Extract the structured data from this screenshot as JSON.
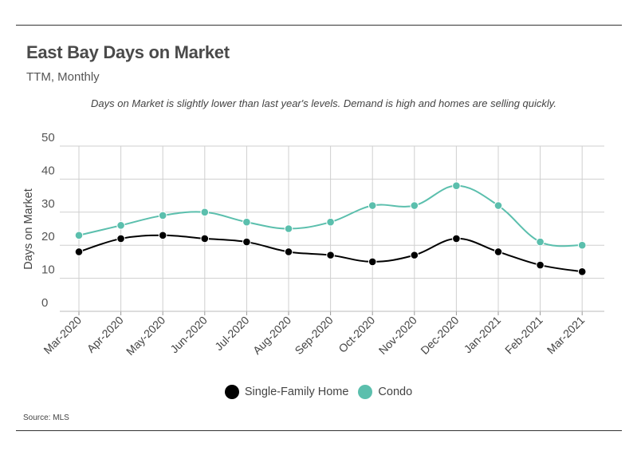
{
  "header": {
    "title": "East Bay Days on Market",
    "subtitle": "TTM, Monthly",
    "note": "Days on Market is slightly lower than last year's levels. Demand is high and homes are selling quickly."
  },
  "footer": {
    "source": "Source: MLS"
  },
  "colors": {
    "single_family": "#000000",
    "condo": "#5bbfad",
    "grid": "#cfcfcf"
  },
  "chart_data": {
    "type": "line",
    "categories": [
      "Mar-2020",
      "Apr-2020",
      "May-2020",
      "Jun-2020",
      "Jul-2020",
      "Aug-2020",
      "Sep-2020",
      "Oct-2020",
      "Nov-2020",
      "Dec-2020",
      "Jan-2021",
      "Feb-2021",
      "Mar-2021"
    ],
    "series": [
      {
        "name": "Single-Family Home",
        "values": [
          18,
          22,
          23,
          22,
          21,
          18,
          17,
          15,
          17,
          22,
          18,
          14,
          12
        ]
      },
      {
        "name": "Condo",
        "values": [
          23,
          26,
          29,
          30,
          27,
          25,
          27,
          32,
          32,
          38,
          32,
          21,
          20
        ]
      }
    ],
    "ylabel": "Days on Market",
    "xlabel": "",
    "ylim": [
      0,
      50
    ],
    "yticks": [
      0,
      10,
      20,
      30,
      40,
      50
    ],
    "grid": true,
    "legend": "bottom"
  }
}
